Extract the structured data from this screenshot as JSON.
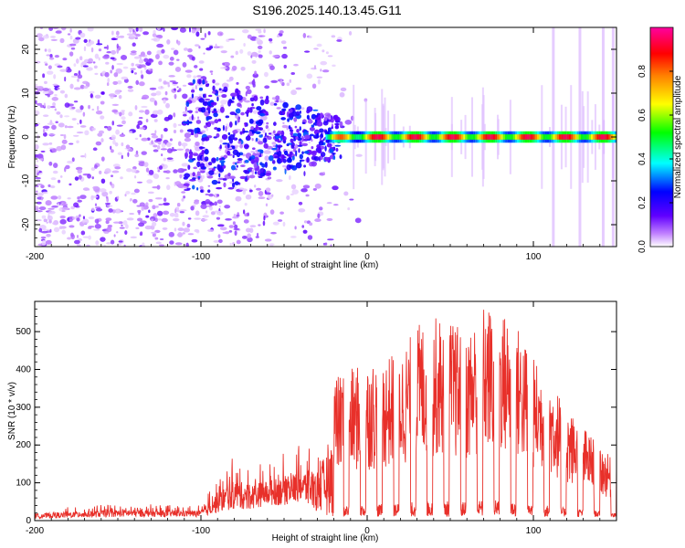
{
  "title": "S196.2025.140.13.45.G11",
  "chart_data": [
    {
      "type": "heatmap",
      "xlabel": "Height of straight line (km)",
      "ylabel": "Frequency (Hz)",
      "xlim": [
        -200,
        150
      ],
      "ylim": [
        -25,
        25
      ],
      "xticks": [
        -200,
        -100,
        0,
        100
      ],
      "yticks": [
        -20,
        -10,
        0,
        10,
        20
      ],
      "colorbar": {
        "label": "Normalized spectral amplitude",
        "range": [
          0,
          1
        ],
        "ticks": [
          "0.0",
          "0.2",
          "0.4",
          "0.6",
          "0.8"
        ],
        "colors": [
          "#ffffff",
          "#a000ff",
          "#0000ff",
          "#00ffff",
          "#00ff00",
          "#ffff00",
          "#ff8000",
          "#ff0000",
          "#ff00a0"
        ]
      },
      "ridge_frequency_hz": 0,
      "description_values": {
        "noise_region_x": [
          -200,
          -20
        ],
        "ridge_region_x": [
          -20,
          150
        ],
        "peak_ridge_amplitude": 0.9
      }
    },
    {
      "type": "line",
      "xlabel": "Height of straight line (km)",
      "ylabel": "SNR (10 * v/v)",
      "xlim": [
        -200,
        150
      ],
      "ylim": [
        0,
        580
      ],
      "xticks": [
        -200,
        -100,
        0,
        100
      ],
      "yticks": [
        0,
        100,
        200,
        300,
        400,
        500
      ],
      "series": [
        {
          "color": "#e8302a",
          "envelope_x": [
            -200,
            -150,
            -100,
            -90,
            -80,
            -70,
            -60,
            -50,
            -40,
            -30,
            -20,
            -10,
            0,
            10,
            20,
            30,
            40,
            50,
            60,
            70,
            80,
            90,
            100,
            110,
            120,
            130,
            140,
            150
          ],
          "envelope_max": [
            30,
            45,
            40,
            120,
            170,
            150,
            160,
            180,
            200,
            230,
            380,
            400,
            420,
            430,
            450,
            520,
            540,
            530,
            500,
            570,
            560,
            520,
            430,
            380,
            300,
            250,
            200,
            150
          ],
          "envelope_min": [
            5,
            10,
            10,
            20,
            30,
            30,
            40,
            40,
            50,
            20,
            10,
            10,
            10,
            10,
            10,
            10,
            10,
            10,
            10,
            10,
            10,
            10,
            10,
            10,
            10,
            10,
            10,
            10
          ]
        }
      ]
    }
  ]
}
